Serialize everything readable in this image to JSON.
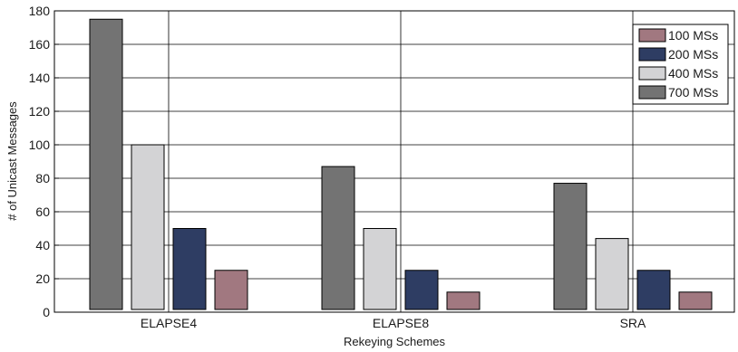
{
  "chart_data": {
    "type": "bar",
    "title": "",
    "xlabel": "Rekeying Schemes",
    "ylabel": "# of Unicast Messages",
    "ylim": [
      0,
      180
    ],
    "yticks": [
      0,
      20,
      40,
      60,
      80,
      100,
      120,
      140,
      160,
      180
    ],
    "categories": [
      "ELAPSE4",
      "ELAPSE8",
      "SRA"
    ],
    "grid": true,
    "legend_position": "top-right",
    "legend_order": [
      "100 MSs",
      "200 MSs",
      "400 MSs",
      "700 MSs"
    ],
    "series": [
      {
        "name": "700 MSs",
        "color": "#737373",
        "values": [
          175,
          87,
          77
        ]
      },
      {
        "name": "400 MSs",
        "color": "#d3d3d5",
        "values": [
          100,
          50,
          44
        ]
      },
      {
        "name": "200 MSs",
        "color": "#2e3d63",
        "values": [
          50,
          25,
          25
        ]
      },
      {
        "name": "100 MSs",
        "color": "#a17880",
        "values": [
          25,
          12,
          12
        ]
      }
    ]
  }
}
